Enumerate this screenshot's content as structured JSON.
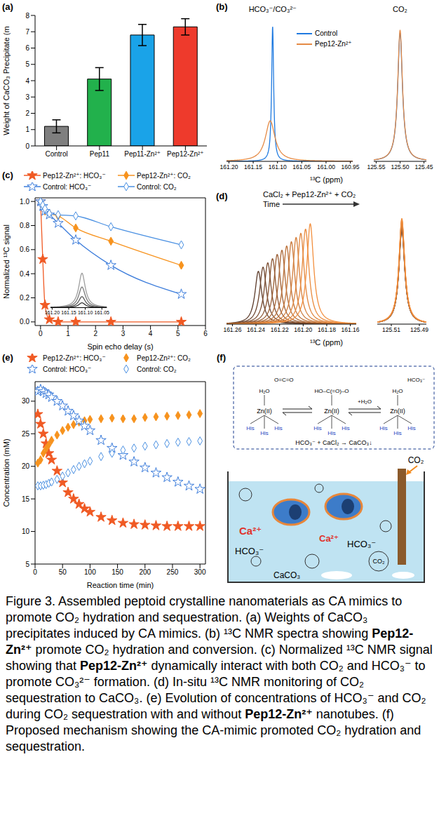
{
  "chart_data": [
    {
      "panel": "(a)",
      "type": "bar",
      "categories": [
        "Control",
        "Pep11",
        "Pep11-Zn²⁺",
        "Pep12-Zn²⁺"
      ],
      "values": [
        1.2,
        4.1,
        6.8,
        7.3
      ],
      "errors": [
        0.4,
        0.7,
        0.65,
        0.5
      ],
      "colors": [
        "#7f7f7f",
        "#22b14c",
        "#1aa3e8",
        "#ee3a2c"
      ],
      "y_label": "Weight of CaCO₃ Precipitate (m",
      "ylim": [
        0,
        8
      ],
      "yticks": [
        0,
        1,
        2,
        3,
        4,
        5,
        6,
        7,
        8
      ]
    },
    {
      "panel": "(b)",
      "type": "spectrum",
      "x_label": "¹³C (ppm)",
      "tick_labels": "x",
      "legend": "upper center",
      "ylim": [
        0,
        1.08
      ],
      "x_segments": [
        {
          "xlim": [
            161.205,
            160.945
          ],
          "xticks": [
            {
              "value": 161.2,
              "label": "161.20"
            },
            161.15,
            {
              "value": 161.1,
              "label": "161.10"
            },
            161.05,
            {
              "value": 161,
              "label": "161.00"
            },
            160.95
          ]
        },
        {
          "xlim": [
            125.555,
            125.445
          ],
          "xticks": [
            125.55,
            {
              "value": 125.5,
              "label": "125.50"
            },
            125.45
          ]
        }
      ],
      "annotations": [
        {
          "text": "HCO₃⁻/CO₃²⁻",
          "x": 161.11
        },
        {
          "text": "CO₂",
          "x": 125.5
        }
      ],
      "series": [
        {
          "name": "Control",
          "color": "#1f7ae0",
          "peaks": [
            {
              "center": 161.11,
              "height": 1.0,
              "width": 0.0025
            },
            {
              "center": 125.5,
              "height": 0.95,
              "width": 0.006
            }
          ]
        },
        {
          "name": "Pep12-Zn²⁺",
          "color": "#e58a45",
          "peaks": [
            {
              "center": 161.115,
              "height": 0.3,
              "width": 0.012
            },
            {
              "center": 125.5,
              "height": 0.97,
              "width": 0.006
            }
          ]
        }
      ]
    },
    {
      "panel": "(c)",
      "type": "line",
      "x_label": "Spin echo delay (s)",
      "y_label": "Normalized ¹³C signal",
      "xlim": [
        -0.2,
        6
      ],
      "xticks": [
        0,
        1,
        2,
        3,
        4,
        5,
        6
      ],
      "ylim": [
        -0.03,
        1.03
      ],
      "yticks": [
        {
          "value": 0,
          "label": "0.0"
        },
        {
          "value": 0.2,
          "label": "0.2"
        },
        {
          "value": 0.4,
          "label": "0.4"
        },
        {
          "value": 0.6,
          "label": "0.6"
        },
        {
          "value": 0.8,
          "label": "0.8"
        },
        {
          "value": 1,
          "label": "1.0"
        }
      ],
      "legend": "top",
      "x": [
        0,
        0.08,
        0.16,
        0.32,
        0.64,
        1.28,
        2.56,
        5.12
      ],
      "series": [
        {
          "name": "Pep12-Zn²⁺: HCO₃⁻",
          "color": "#f05a24",
          "marker": "star",
          "line_style": "solid",
          "values": [
            1.0,
            0.52,
            0.14,
            0.02,
            0.0,
            0.0,
            0.0,
            0.0
          ]
        },
        {
          "name": "Pep12-Zn²⁺: CO₂",
          "color": "#f7931e",
          "marker": "diamond",
          "line_style": "solid",
          "values": [
            1.0,
            0.95,
            0.92,
            0.9,
            0.88,
            0.78,
            0.67,
            0.47
          ]
        },
        {
          "name": "Control: HCO₃⁻",
          "color": "#3d7ddb",
          "marker": "star_open",
          "line_style": "solid",
          "values": [
            1.0,
            0.96,
            0.92,
            0.89,
            0.82,
            0.68,
            0.47,
            0.23
          ]
        },
        {
          "name": "Control: CO₂",
          "color": "#4a90e2",
          "marker": "diamond_open",
          "line_style": "solid",
          "values": [
            1.0,
            0.97,
            0.94,
            0.9,
            0.89,
            0.88,
            0.79,
            0.64
          ]
        }
      ],
      "inset": {
        "type": "spectrum",
        "tick_labels": "x",
        "xlim": [
          161.205,
          161.035
        ],
        "xticks": [
          {
            "value": 161.2,
            "label": "161.20"
          },
          161.15,
          {
            "value": 161.1,
            "label": "161.10"
          },
          161.05
        ],
        "ylim": [
          0,
          1.05
        ],
        "series": [
          {
            "color": "#9e9e9e",
            "peaks": [
              {
                "center": 161.11,
                "height": 1.0,
                "width": 0.012
              }
            ]
          },
          {
            "color": "#7a7a7a",
            "peaks": [
              {
                "center": 161.11,
                "height": 0.6,
                "width": 0.012
              }
            ]
          },
          {
            "color": "#5a5a5a",
            "peaks": [
              {
                "center": 161.11,
                "height": 0.32,
                "width": 0.012
              }
            ]
          },
          {
            "color": "#3a3a3a",
            "peaks": [
              {
                "center": 161.11,
                "height": 0.14,
                "width": 0.012
              }
            ]
          }
        ]
      }
    },
    {
      "panel": "(d)",
      "type": "spectrum",
      "x_label": "¹³C (ppm)",
      "tick_labels": "x",
      "ylim": [
        0,
        1.05
      ],
      "annotation": "CaCl₂ + Pep12-Zn²⁺ + CO₂",
      "arrow_label": "Time",
      "x_segments": [
        {
          "xlim": [
            161.265,
            161.155
          ],
          "xticks": [
            161.26,
            161.24,
            161.22,
            {
              "value": 161.2,
              "label": "161.20"
            },
            161.18,
            161.16
          ]
        },
        {
          "xlim": [
            125.52,
            125.485
          ],
          "xticks": [
            125.51,
            125.49
          ]
        }
      ],
      "series": [
        {
          "color": "#5b3a29",
          "peaks": [
            {
              "center": 161.238,
              "height": 0.5,
              "width": 0.0035
            },
            {
              "center": 125.5025,
              "height": 0.89,
              "width": 0.0025
            }
          ]
        },
        {
          "color": "#6b432c",
          "peaks": [
            {
              "center": 161.234,
              "height": 0.54,
              "width": 0.0035
            },
            {
              "center": 125.5025,
              "height": 0.9,
              "width": 0.0025
            }
          ]
        },
        {
          "color": "#7b4c2f",
          "peaks": [
            {
              "center": 161.23,
              "height": 0.58,
              "width": 0.0035
            },
            {
              "center": 125.5025,
              "height": 0.91,
              "width": 0.0025
            }
          ]
        },
        {
          "color": "#8b5532",
          "peaks": [
            {
              "center": 161.226,
              "height": 0.62,
              "width": 0.0035
            },
            {
              "center": 125.5025,
              "height": 0.92,
              "width": 0.0025
            }
          ]
        },
        {
          "color": "#9b5e34",
          "peaks": [
            {
              "center": 161.222,
              "height": 0.66,
              "width": 0.0035
            },
            {
              "center": 125.5025,
              "height": 0.93,
              "width": 0.0025
            }
          ]
        },
        {
          "color": "#ab6736",
          "peaks": [
            {
              "center": 161.218,
              "height": 0.7,
              "width": 0.0035
            },
            {
              "center": 125.5025,
              "height": 0.94,
              "width": 0.0025
            }
          ]
        },
        {
          "color": "#bb7038",
          "peaks": [
            {
              "center": 161.214,
              "height": 0.74,
              "width": 0.0035
            },
            {
              "center": 125.5025,
              "height": 0.95,
              "width": 0.0025
            }
          ]
        },
        {
          "color": "#c9783a",
          "peaks": [
            {
              "center": 161.21,
              "height": 0.78,
              "width": 0.0035
            },
            {
              "center": 125.5025,
              "height": 0.96,
              "width": 0.0025
            }
          ]
        },
        {
          "color": "#d57f3b",
          "peaks": [
            {
              "center": 161.206,
              "height": 0.82,
              "width": 0.0035
            },
            {
              "center": 125.5025,
              "height": 0.97,
              "width": 0.0025
            }
          ]
        },
        {
          "color": "#e0853c",
          "peaks": [
            {
              "center": 161.202,
              "height": 0.86,
              "width": 0.0035
            },
            {
              "center": 125.5025,
              "height": 0.98,
              "width": 0.0025
            }
          ]
        },
        {
          "color": "#e98a3d",
          "peaks": [
            {
              "center": 161.198,
              "height": 0.9,
              "width": 0.0035
            },
            {
              "center": 125.5025,
              "height": 0.99,
              "width": 0.0025
            }
          ]
        },
        {
          "color": "#f28f3e",
          "peaks": [
            {
              "center": 161.194,
              "height": 0.95,
              "width": 0.0035
            },
            {
              "center": 125.5025,
              "height": 1.0,
              "width": 0.0025
            }
          ]
        }
      ]
    },
    {
      "panel": "(e)",
      "type": "scatter",
      "x_label": "Reaction time (min)",
      "y_label": "Concentration (mM)",
      "xlim": [
        0,
        310
      ],
      "xticks": [
        0,
        50,
        100,
        150,
        200,
        250,
        300
      ],
      "ylim": [
        5,
        33
      ],
      "yticks": [
        5,
        10,
        15,
        20,
        25,
        30
      ],
      "legend": "top",
      "x": [
        5,
        10,
        15,
        20,
        25,
        30,
        40,
        50,
        60,
        70,
        80,
        90,
        100,
        120,
        140,
        160,
        180,
        200,
        220,
        240,
        260,
        280,
        300
      ],
      "series": [
        {
          "name": "Pep12-Zn²⁺: HCO₃⁻",
          "color": "#f05a24",
          "marker": "star",
          "values": [
            28,
            26.5,
            25,
            23.5,
            22,
            21,
            19.3,
            17.5,
            16,
            15,
            14.2,
            13.5,
            13,
            12.2,
            11.7,
            11.3,
            11.1,
            11,
            10.9,
            10.8,
            10.8,
            10.8,
            10.8
          ]
        },
        {
          "name": "Pep12-Zn²⁺: CO₂",
          "color": "#f7931e",
          "marker": "diamond",
          "values": [
            20.5,
            21,
            22,
            22.7,
            23.3,
            24,
            24.8,
            25.5,
            26,
            26.4,
            26.8,
            27,
            27.2,
            27.3,
            27.4,
            27.3,
            27.3,
            27.5,
            27.6,
            27.7,
            27.8,
            27.9,
            28.1
          ]
        },
        {
          "name": "Control: HCO₃⁻",
          "color": "#3d7ddb",
          "marker": "star_open",
          "values": [
            31.5,
            31.8,
            31.5,
            31.2,
            31,
            30.6,
            30,
            29.3,
            28.5,
            27.8,
            27,
            26.2,
            25.5,
            24,
            22.8,
            21.7,
            20.7,
            19.8,
            19,
            18.3,
            17.6,
            17,
            16.5
          ]
        },
        {
          "name": "Control: CO₂",
          "color": "#4a90e2",
          "marker": "diamond_open",
          "values": [
            17,
            17,
            17.1,
            17.2,
            17.4,
            17.6,
            18,
            18.5,
            19,
            19.5,
            20,
            20.4,
            20.8,
            21.5,
            22,
            22.5,
            22.8,
            23.1,
            23.3,
            23.5,
            23.7,
            23.8,
            23.9
          ]
        }
      ]
    }
  ],
  "diagram": {
    "panel": "(f)",
    "scheme": {
      "metal": "Zn(II)",
      "ligand": "His",
      "steps": [
        {
          "ligand": "H₂O",
          "partner": "O=C=O"
        },
        {
          "ligand": "HO–C(=O)–O"
        },
        {
          "ligand": "H₂O",
          "partner": "HCO₃⁻"
        }
      ],
      "reagent": "+H₂O",
      "reaction": "HCO₃⁻ + CaCl₂ → CaCO₃↓"
    },
    "beaker": {
      "ion": "Ca²⁺",
      "anion": "HCO₃⁻",
      "precipitate": "CaCO₃",
      "gas": "CO₂"
    }
  },
  "caption": [
    {
      "text": "Figure 3. Assembled peptoid crystalline nanomaterials as CA mimics to promote CO₂ hydration and sequestration. (a) Weights of CaCO₃ precipitates induced by CA mimics. (b) ¹³C NMR spectra showing "
    },
    {
      "text": "Pep12-Zn²⁺",
      "bold": true
    },
    {
      "text": " promote CO₂ hydration and conversion. (c) Normalized ¹³C NMR signal showing that "
    },
    {
      "text": "Pep12-Zn²⁺",
      "bold": true
    },
    {
      "text": " dynamically interact with both CO₂ and HCO₃⁻ to promote CO₃²⁻ formation. (d) In-situ ¹³C NMR monitoring of CO₂ sequestration to CaCO₃. (e) Evolution of concentrations of HCO₃⁻ and CO₂ during CO₂ sequestration with and without "
    },
    {
      "text": "Pep12-Zn²⁺",
      "bold": true
    },
    {
      "text": " nanotubes. (f) Proposed mechanism showing the CA-mimic promoted CO₂ hydration and sequestration."
    }
  ]
}
